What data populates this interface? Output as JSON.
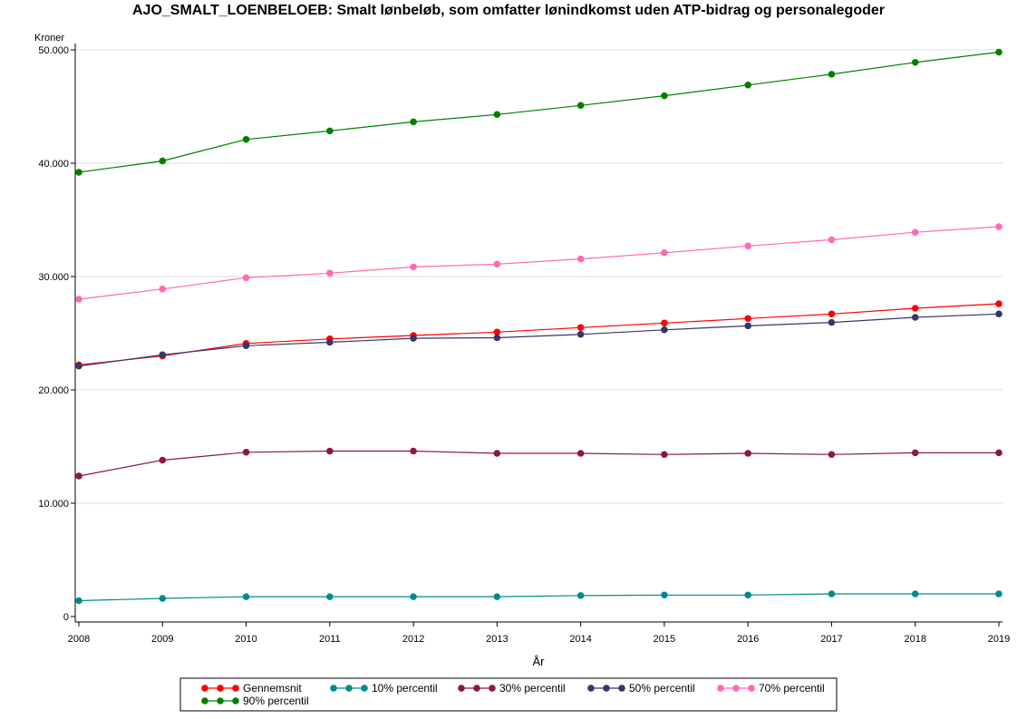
{
  "chart_data": {
    "type": "line",
    "title": "AJO_SMALT_LOENBELOEB: Smalt lønbeløb, som omfatter lønindkomst uden ATP-bidrag og personalegoder",
    "xlabel": "År",
    "ylabel": "Kroner",
    "x": [
      2008,
      2009,
      2010,
      2011,
      2012,
      2013,
      2014,
      2015,
      2016,
      2017,
      2018,
      2019
    ],
    "xlim": [
      2008,
      2019
    ],
    "ylim": [
      0,
      50000
    ],
    "y_ticks": [
      0,
      10000,
      20000,
      30000,
      40000,
      50000
    ],
    "y_tick_labels": [
      "0",
      "10.000",
      "20.000",
      "30.000",
      "40.000",
      "50.000"
    ],
    "grid": "horizontal",
    "legend_position": "bottom",
    "series": [
      {
        "name": "Gennemsnit",
        "color": "#ff0000",
        "values": [
          22200,
          23000,
          24100,
          24500,
          24800,
          25100,
          25500,
          25900,
          26300,
          26700,
          27200,
          27600
        ]
      },
      {
        "name": "10% percentil",
        "color": "#008b8b",
        "values": [
          1400,
          1600,
          1750,
          1750,
          1750,
          1750,
          1850,
          1900,
          1900,
          2000,
          2000,
          2000
        ]
      },
      {
        "name": "30% percentil",
        "color": "#8b1a3a",
        "values": [
          12400,
          13800,
          14500,
          14600,
          14600,
          14400,
          14400,
          14300,
          14400,
          14300,
          14450,
          14450
        ]
      },
      {
        "name": "50% percentil",
        "color": "#36366e",
        "values": [
          22100,
          23100,
          23900,
          24200,
          24550,
          24600,
          24900,
          25300,
          25650,
          25950,
          26400,
          26700
        ]
      },
      {
        "name": "70% percentil",
        "color": "#ff69b4",
        "values": [
          28000,
          28900,
          29900,
          30300,
          30850,
          31100,
          31550,
          32100,
          32700,
          33250,
          33900,
          34400
        ]
      },
      {
        "name": "90% percentil",
        "color": "#008000",
        "values": [
          39200,
          40200,
          42100,
          42850,
          43650,
          44300,
          45100,
          45950,
          46900,
          47850,
          48900,
          49800
        ]
      }
    ]
  }
}
